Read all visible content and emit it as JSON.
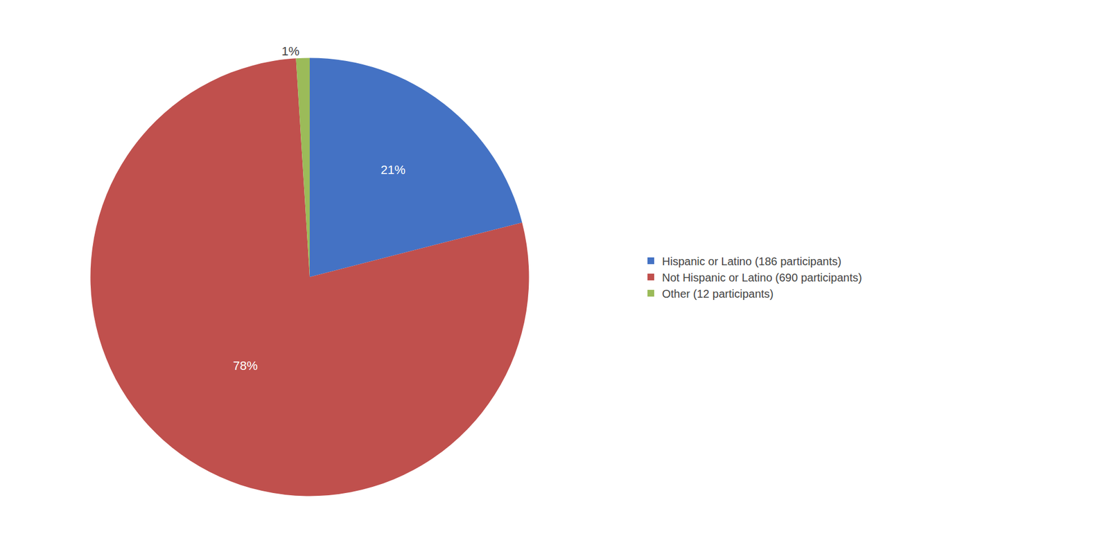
{
  "chart_data": {
    "type": "pie",
    "categories": [
      "Hispanic or Latino (186 participants)",
      "Not Hispanic or Latino (690 participants)",
      "Other (12 participants)"
    ],
    "values": [
      21,
      78,
      1
    ],
    "value_labels": [
      "21%",
      "78%",
      "1%"
    ],
    "colors": [
      "#4472C4",
      "#C0504D",
      "#9BBB59"
    ],
    "data_labels": true,
    "legend": "right"
  }
}
